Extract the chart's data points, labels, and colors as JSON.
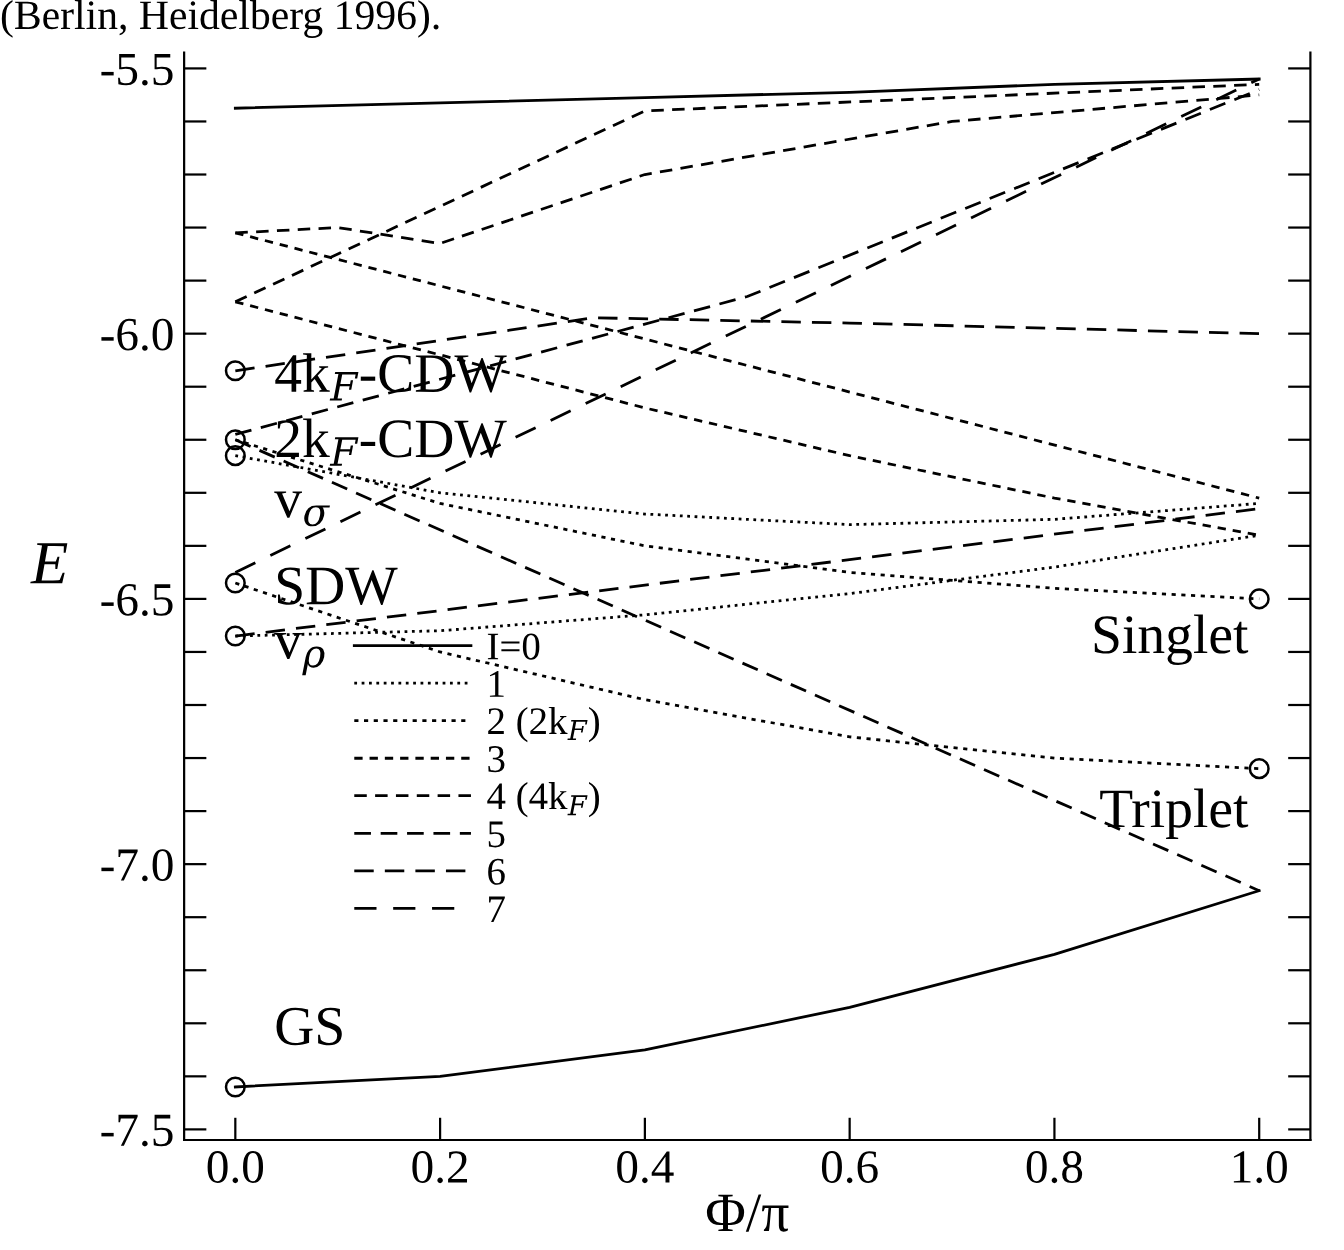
{
  "chart_data": {
    "type": "line",
    "xlabel": "Φ/π",
    "ylabel": "E",
    "xlim": [
      -0.05,
      1.05
    ],
    "ylim": [
      -7.52,
      -5.47
    ],
    "xticks": [
      {
        "value": 0,
        "label": "0.0"
      },
      {
        "value": 0.2,
        "label": "0.2"
      },
      {
        "value": 0.4,
        "label": "0.4"
      },
      {
        "value": 0.6,
        "label": "0.6"
      },
      {
        "value": 0.8,
        "label": "0.8"
      },
      {
        "value": 1,
        "label": "1.0"
      }
    ],
    "yticks": [
      {
        "value": -7.5,
        "label": "-7.5"
      },
      {
        "value": -7.4,
        "label": null
      },
      {
        "value": -7.3,
        "label": null
      },
      {
        "value": -7.2,
        "label": null
      },
      {
        "value": -7.1,
        "label": null
      },
      {
        "value": -7.0,
        "label": "-7.0"
      },
      {
        "value": -6.9,
        "label": null
      },
      {
        "value": -6.8,
        "label": null
      },
      {
        "value": -6.7,
        "label": null
      },
      {
        "value": -6.6,
        "label": null
      },
      {
        "value": -6.5,
        "label": "-6.5"
      },
      {
        "value": -6.4,
        "label": null
      },
      {
        "value": -6.3,
        "label": null
      },
      {
        "value": -6.2,
        "label": null
      },
      {
        "value": -6.1,
        "label": null
      },
      {
        "value": -6.0,
        "label": "-6.0"
      },
      {
        "value": -5.9,
        "label": null
      },
      {
        "value": -5.8,
        "label": null
      },
      {
        "value": -5.7,
        "label": null
      },
      {
        "value": -5.6,
        "label": null
      },
      {
        "value": -5.5,
        "label": "-5.5"
      }
    ],
    "grid": false,
    "legend": "left",
    "marker": "none",
    "series": [
      {
        "name": "I=0",
        "color": "#000000",
        "line_style": "solid",
        "x": [
          0,
          0.2,
          0.4,
          0.6,
          0.8,
          1
        ],
        "values": [
          -7.42,
          -7.4,
          -7.35,
          -7.27,
          -7.17,
          -7.05
        ]
      },
      {
        "color": "#000000",
        "line_style": "solid",
        "x": [
          0,
          0.2,
          0.4,
          0.6,
          0.8,
          1
        ],
        "values": [
          -5.575,
          -5.565,
          -5.555,
          -5.545,
          -5.53,
          -5.52
        ]
      },
      {
        "name": "1",
        "color": "#000000",
        "line_style": "dotted",
        "x": [
          0,
          0.2,
          0.4,
          0.6,
          0.8,
          1
        ],
        "values": [
          -6.57,
          -6.56,
          -6.53,
          -6.49,
          -6.44,
          -6.38
        ]
      },
      {
        "color": "#000000",
        "line_style": "dotted",
        "x": [
          0,
          0.2,
          0.4,
          0.6,
          0.8,
          1
        ],
        "values": [
          -6.23,
          -6.3,
          -6.34,
          -6.36,
          -6.35,
          -6.32
        ]
      },
      {
        "name": "2 (2k$_{F}$)",
        "color": "#000000",
        "line_style": "dashed",
        "x": [
          0,
          0.2,
          0.4,
          0.6,
          0.8,
          1
        ],
        "values": [
          -6.2,
          -6.32,
          -6.4,
          -6.45,
          -6.48,
          -6.5
        ]
      },
      {
        "color": "#000000",
        "line_style": "dashed",
        "x": [
          0,
          0.2,
          0.4,
          0.6,
          0.8,
          1
        ],
        "values": [
          -6.47,
          -6.6,
          -6.69,
          -6.76,
          -6.8,
          -6.82
        ]
      },
      {
        "name": "3",
        "color": "#000000",
        "line_style": "dashed",
        "x": [
          0,
          1
        ],
        "values": [
          -5.81,
          -6.31
        ]
      },
      {
        "color": "#000000",
        "line_style": "dashed",
        "x": [
          0,
          0.2,
          0.4,
          0.6,
          0.8,
          1
        ],
        "values": [
          -5.94,
          -6.04,
          -6.14,
          -6.23,
          -6.31,
          -6.38
        ]
      },
      {
        "name": "4 (4k$_{F}$)",
        "color": "#000000",
        "line_style": "dashed",
        "x": [
          0,
          0.4,
          1
        ],
        "values": [
          -5.94,
          -5.58,
          -5.53
        ]
      },
      {
        "color": "#000000",
        "line_style": "dashed",
        "x": [
          0,
          0.1,
          0.2,
          0.4,
          0.7,
          1
        ],
        "values": [
          -5.81,
          -5.8,
          -5.83,
          -5.7,
          -5.6,
          -5.55
        ]
      },
      {
        "name": "5",
        "color": "#000000",
        "line_style": "dashed",
        "x": [
          0,
          1
        ],
        "values": [
          -6.2,
          -7.05
        ]
      },
      {
        "color": "#000000",
        "line_style": "dashed",
        "x": [
          0,
          0.5,
          1
        ],
        "values": [
          -6.19,
          -5.93,
          -5.54
        ]
      },
      {
        "name": "6",
        "color": "#000000",
        "line_style": "dashed",
        "x": [
          0,
          0.35,
          0.6,
          1
        ],
        "values": [
          -6.07,
          -5.97,
          -5.98,
          -6.0
        ]
      },
      {
        "color": "#000000",
        "line_style": "dashed",
        "x": [
          0,
          1
        ],
        "values": [
          -6.57,
          -6.33
        ]
      },
      {
        "name": "7",
        "color": "#000000",
        "line_style": "dashed",
        "x": [
          0,
          1
        ],
        "values": [
          -6.45,
          -5.52
        ]
      },
      {
        "type": "scatter",
        "marker": "circle",
        "color": "#000000",
        "x": [
          0,
          0,
          0,
          0,
          0,
          0,
          1,
          1
        ],
        "values": [
          -6.07,
          -6.2,
          -6.23,
          -6.47,
          -6.57,
          -7.42,
          -6.5,
          -6.82
        ]
      }
    ],
    "annotations": [
      "(Berlin, Heidelberg 1996).",
      "4k$_{F}$-CDW",
      "2k$_{F}$-CDW",
      "v$_{σ}$",
      "SDW",
      "v$_{ρ}$",
      "GS",
      "Singlet",
      "Triplet"
    ]
  }
}
